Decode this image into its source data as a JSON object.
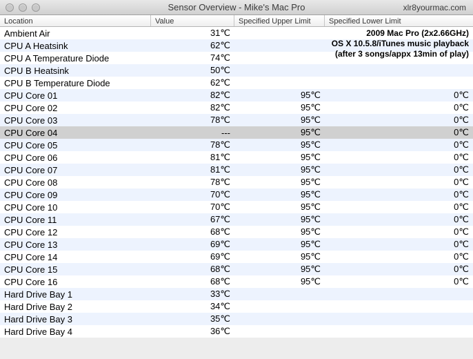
{
  "window": {
    "title": "Sensor Overview - Mike's Mac Pro",
    "site": "xlr8yourmac.com"
  },
  "columns": {
    "location": "Location",
    "value": "Value",
    "upper": "Specified Upper Limit",
    "lower": "Specified Lower Limit"
  },
  "overlay": {
    "line1": "2009 Mac Pro (2x2.66GHz)",
    "line2": "OS X 10.5.8/iTunes music playback",
    "line3": "(after 3 songs/appx 13min of play)"
  },
  "rows": [
    {
      "location": "Ambient Air",
      "value": "31℃",
      "upper": "",
      "lower": "",
      "selected": false
    },
    {
      "location": "CPU A Heatsink",
      "value": "62℃",
      "upper": "",
      "lower": "",
      "selected": false
    },
    {
      "location": "CPU A Temperature Diode",
      "value": "74℃",
      "upper": "",
      "lower": "",
      "selected": false
    },
    {
      "location": "CPU B Heatsink",
      "value": "50℃",
      "upper": "",
      "lower": "",
      "selected": false
    },
    {
      "location": "CPU B Temperature Diode",
      "value": "62℃",
      "upper": "",
      "lower": "",
      "selected": false
    },
    {
      "location": "CPU Core 01",
      "value": "82℃",
      "upper": "95℃",
      "lower": "0℃",
      "selected": false
    },
    {
      "location": "CPU Core 02",
      "value": "82℃",
      "upper": "95℃",
      "lower": "0℃",
      "selected": false
    },
    {
      "location": "CPU Core 03",
      "value": "78℃",
      "upper": "95℃",
      "lower": "0℃",
      "selected": false
    },
    {
      "location": "CPU Core 04",
      "value": "---",
      "upper": "95℃",
      "lower": "0℃",
      "selected": true
    },
    {
      "location": "CPU Core 05",
      "value": "78℃",
      "upper": "95℃",
      "lower": "0℃",
      "selected": false
    },
    {
      "location": "CPU Core 06",
      "value": "81℃",
      "upper": "95℃",
      "lower": "0℃",
      "selected": false
    },
    {
      "location": "CPU Core 07",
      "value": "81℃",
      "upper": "95℃",
      "lower": "0℃",
      "selected": false
    },
    {
      "location": "CPU Core 08",
      "value": "78℃",
      "upper": "95℃",
      "lower": "0℃",
      "selected": false
    },
    {
      "location": "CPU Core 09",
      "value": "70℃",
      "upper": "95℃",
      "lower": "0℃",
      "selected": false
    },
    {
      "location": "CPU Core 10",
      "value": "70℃",
      "upper": "95℃",
      "lower": "0℃",
      "selected": false
    },
    {
      "location": "CPU Core 11",
      "value": "67℃",
      "upper": "95℃",
      "lower": "0℃",
      "selected": false
    },
    {
      "location": "CPU Core 12",
      "value": "68℃",
      "upper": "95℃",
      "lower": "0℃",
      "selected": false
    },
    {
      "location": "CPU Core 13",
      "value": "69℃",
      "upper": "95℃",
      "lower": "0℃",
      "selected": false
    },
    {
      "location": "CPU Core 14",
      "value": "69℃",
      "upper": "95℃",
      "lower": "0℃",
      "selected": false
    },
    {
      "location": "CPU Core 15",
      "value": "68℃",
      "upper": "95℃",
      "lower": "0℃",
      "selected": false
    },
    {
      "location": "CPU Core 16",
      "value": "68℃",
      "upper": "95℃",
      "lower": "0℃",
      "selected": false
    },
    {
      "location": "Hard Drive Bay 1",
      "value": "33℃",
      "upper": "",
      "lower": "",
      "selected": false
    },
    {
      "location": "Hard Drive Bay 2",
      "value": "34℃",
      "upper": "",
      "lower": "",
      "selected": false
    },
    {
      "location": "Hard Drive Bay 3",
      "value": "35℃",
      "upper": "",
      "lower": "",
      "selected": false
    },
    {
      "location": "Hard Drive Bay 4",
      "value": "36℃",
      "upper": "",
      "lower": "",
      "selected": false
    }
  ]
}
